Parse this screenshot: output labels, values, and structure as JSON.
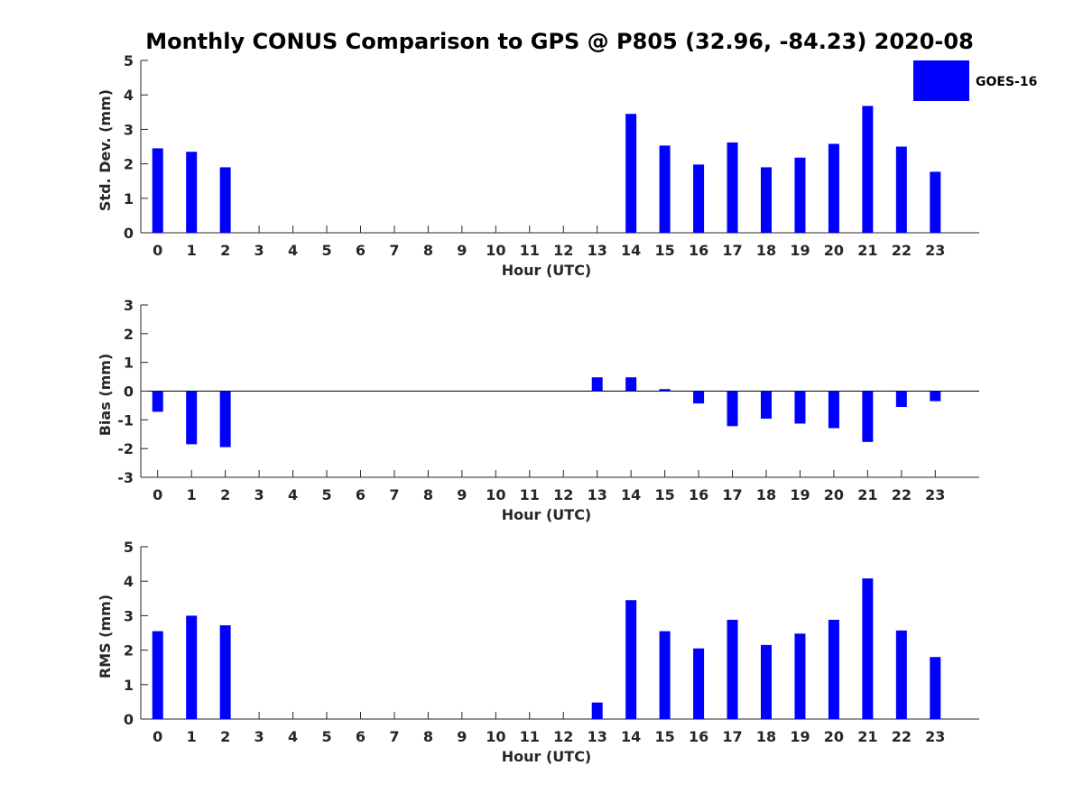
{
  "chart_data": {
    "title": "Monthly CONUS Comparison to GPS @ P805 (32.96, -84.23) 2020-08",
    "bar_color": "#0000ff",
    "legend": {
      "label": "GOES-16",
      "placement": "top-right"
    },
    "panels": [
      {
        "type": "bar",
        "ylabel": "Std. Dev. (mm)",
        "xlabel": "Hour (UTC)",
        "ylim": [
          0,
          5
        ],
        "yticks": [
          0,
          1,
          2,
          3,
          4,
          5
        ],
        "x": [
          0,
          1,
          2,
          3,
          4,
          5,
          6,
          7,
          8,
          9,
          10,
          11,
          12,
          13,
          14,
          15,
          16,
          17,
          18,
          19,
          20,
          21,
          22,
          23
        ],
        "series": [
          {
            "name": "GOES-16",
            "values": [
              2.45,
              2.35,
              1.9,
              null,
              null,
              null,
              null,
              null,
              null,
              null,
              null,
              null,
              null,
              null,
              3.45,
              2.53,
              1.98,
              2.62,
              1.9,
              2.18,
              2.58,
              3.68,
              2.5,
              1.77
            ]
          }
        ]
      },
      {
        "type": "bar",
        "ylabel": "Bias (mm)",
        "xlabel": "Hour (UTC)",
        "ylim": [
          -3,
          3
        ],
        "yticks": [
          -3,
          -2,
          -1,
          0,
          1,
          2,
          3
        ],
        "x": [
          0,
          1,
          2,
          3,
          4,
          5,
          6,
          7,
          8,
          9,
          10,
          11,
          12,
          13,
          14,
          15,
          16,
          17,
          18,
          19,
          20,
          21,
          22,
          23
        ],
        "series": [
          {
            "name": "GOES-16",
            "values": [
              -0.72,
              -1.85,
              -1.95,
              null,
              null,
              null,
              null,
              null,
              null,
              null,
              null,
              null,
              null,
              0.48,
              0.48,
              0.07,
              -0.43,
              -1.22,
              -0.96,
              -1.13,
              -1.29,
              -1.77,
              -0.55,
              -0.35
            ]
          }
        ]
      },
      {
        "type": "bar",
        "ylabel": "RMS (mm)",
        "xlabel": "Hour (UTC)",
        "ylim": [
          0,
          5
        ],
        "yticks": [
          0,
          1,
          2,
          3,
          4,
          5
        ],
        "x": [
          0,
          1,
          2,
          3,
          4,
          5,
          6,
          7,
          8,
          9,
          10,
          11,
          12,
          13,
          14,
          15,
          16,
          17,
          18,
          19,
          20,
          21,
          22,
          23
        ],
        "series": [
          {
            "name": "GOES-16",
            "values": [
              2.55,
              3.0,
              2.72,
              null,
              null,
              null,
              null,
              null,
              null,
              null,
              null,
              null,
              null,
              0.48,
              3.45,
              2.55,
              2.05,
              2.88,
              2.15,
              2.48,
              2.88,
              4.08,
              2.57,
              1.8
            ]
          }
        ]
      }
    ]
  }
}
